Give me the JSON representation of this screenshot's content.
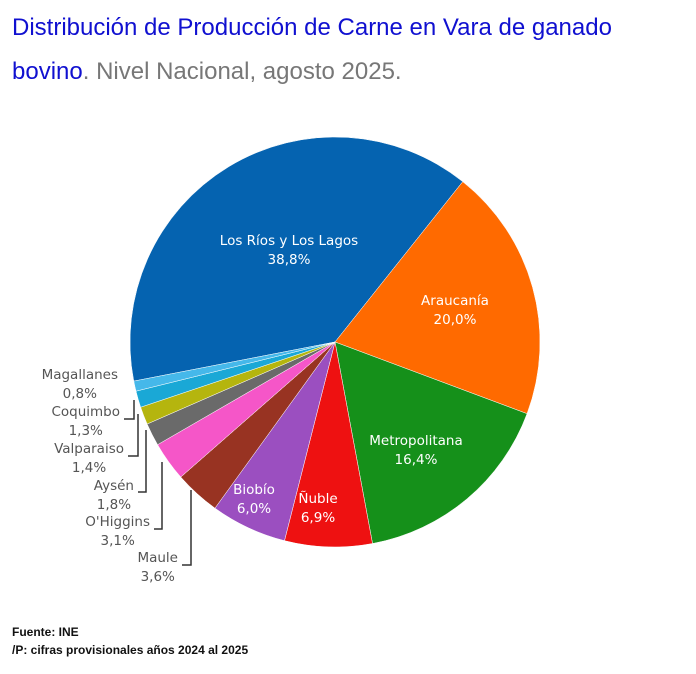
{
  "title_part1": "Distribución de Producción de Carne en Vara de ganado",
  "title_part2_blue": "bovino",
  "title_part2_gray": ". Nivel Nacional, agosto 2025.",
  "chart_data": {
    "type": "pie",
    "title": "Distribución de Producción de Carne en Vara de ganado bovino. Nivel Nacional, agosto 2025.",
    "slices": [
      {
        "label": "Los Ríos y Los Lagos",
        "value": 38.8,
        "text": "38,8%",
        "color": "#0563b0"
      },
      {
        "label": "Araucanía",
        "value": 20.0,
        "text": "20,0%",
        "color": "#ff6a00"
      },
      {
        "label": "Metropolitana",
        "value": 16.4,
        "text": "16,4%",
        "color": "#15901a"
      },
      {
        "label": "Ñuble",
        "value": 6.9,
        "text": "6,9%",
        "color": "#ee1111"
      },
      {
        "label": "Biobío",
        "value": 6.0,
        "text": "6,0%",
        "color": "#9b4fc0"
      },
      {
        "label": "Maule",
        "value": 3.6,
        "text": "3,6%",
        "color": "#983322"
      },
      {
        "label": "O'Higgins",
        "value": 3.1,
        "text": "3,1%",
        "color": "#f556c8"
      },
      {
        "label": "Aysén",
        "value": 1.8,
        "text": "1,8%",
        "color": "#6a6a6a"
      },
      {
        "label": "Valparaiso",
        "value": 1.4,
        "text": "1,4%",
        "color": "#b5b50e"
      },
      {
        "label": "Coquimbo",
        "value": 1.3,
        "text": "1,3%",
        "color": "#1aa8d6"
      },
      {
        "label": "Magallanes",
        "value": 0.8,
        "text": "0,8%",
        "color": "#45b8ea"
      }
    ]
  },
  "footer": {
    "source": "Fuente: INE",
    "note": "/P: cifras provisionales años 2024 al 2025"
  }
}
